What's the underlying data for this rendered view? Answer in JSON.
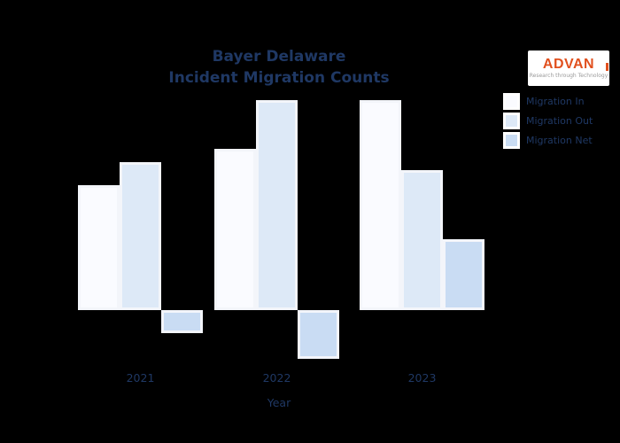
{
  "theme": {
    "background": "#000000",
    "navy": "#1f3864",
    "brand": "#e1501e",
    "bar_border": "#f3f5fa"
  },
  "title": {
    "line1": "Bayer Delaware",
    "line2": "Incident Migration Counts"
  },
  "logo": {
    "name": "ADVAN",
    "tagline": "Research through Technology"
  },
  "x_axis": {
    "title": "Year",
    "labels": [
      "2021",
      "2022",
      "2023"
    ]
  },
  "legend": {
    "position": "upper right",
    "items": [
      {
        "label": "Migration In",
        "color": "#fafbff"
      },
      {
        "label": "Migration Out",
        "color": "#dde9f7"
      },
      {
        "label": "Migration Net",
        "color": "#c9dcf3"
      }
    ]
  },
  "chart_data": {
    "type": "bar",
    "title": "Bayer Delaware Incident Migration Counts",
    "categories": [
      "2021",
      "2022",
      "2023"
    ],
    "series": [
      {
        "name": "Migration In",
        "values": [
          141,
          182,
          237
        ],
        "color": "#fafbff"
      },
      {
        "name": "Migration Out",
        "values": [
          167,
          237,
          158
        ],
        "color": "#dde9f7"
      },
      {
        "name": "Migration Net",
        "values": [
          -26,
          -55,
          80
        ],
        "color": "#c9dcf3"
      }
    ],
    "xlabel": "Year",
    "ylabel": "",
    "ylim": [
      -80,
      260
    ],
    "grid": false,
    "legend_position": "upper right",
    "notes": "No y-axis ticks visible; values are relative units (Net = In - Out)."
  }
}
